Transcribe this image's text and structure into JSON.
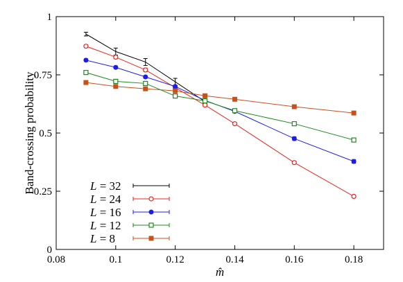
{
  "chart_data": {
    "type": "line",
    "xlabel": "m̂",
    "ylabel": "Band-crossing probability",
    "xlim": [
      0.08,
      0.19
    ],
    "ylim": [
      0,
      1
    ],
    "x_ticks": [
      "0.08",
      "0.1",
      "0.12",
      "0.14",
      "0.16",
      "0.18"
    ],
    "y_ticks": [
      "0",
      "0.25",
      "0.5",
      "0.75",
      "1"
    ],
    "x": [
      0.09,
      0.1,
      0.11,
      0.12,
      0.13,
      0.14,
      0.16,
      0.18
    ],
    "grid": false,
    "legend_position": "bottom-left",
    "series": [
      {
        "name": "L = 32",
        "label_var": "L",
        "label_value": "= 32",
        "color": "#000000",
        "marker": "none",
        "values": [
          0.925,
          0.85,
          0.805,
          0.72,
          0.635,
          null,
          null,
          null
        ],
        "errors": [
          0.008,
          0.015,
          0.015,
          0.015,
          0.008,
          null,
          null,
          null
        ]
      },
      {
        "name": "L = 24",
        "label_var": "L",
        "label_value": "= 24",
        "color": "#e8251c",
        "marker": "open-circle",
        "values": [
          0.873,
          0.826,
          0.771,
          0.695,
          0.62,
          0.54,
          0.373,
          0.228
        ],
        "errors": [
          0.006,
          0.007,
          0.008,
          0.008,
          0.006,
          0.006,
          0.006,
          0.006
        ]
      },
      {
        "name": "L = 16",
        "label_var": "L",
        "label_value": "= 16",
        "color": "#1c1ce8",
        "marker": "filled-circle",
        "values": [
          0.813,
          0.782,
          0.741,
          0.7,
          0.64,
          0.593,
          0.476,
          0.378
        ],
        "errors": [
          0.006,
          0.006,
          0.006,
          0.006,
          0.006,
          0.006,
          0.008,
          0.008
        ]
      },
      {
        "name": "L = 12",
        "label_var": "L",
        "label_value": "= 12",
        "color": "#1a8a1a",
        "marker": "open-square",
        "values": [
          0.76,
          0.722,
          0.713,
          0.659,
          0.638,
          0.596,
          0.54,
          0.47
        ],
        "errors": [
          0.004,
          0.004,
          0.004,
          0.004,
          0.004,
          0.004,
          0.004,
          0.006
        ]
      },
      {
        "name": "L = 8",
        "label_var": "L",
        "label_value": "= 8",
        "color": "#c8501a",
        "marker": "filled-square",
        "values": [
          0.717,
          0.7,
          0.69,
          0.681,
          0.66,
          0.645,
          0.613,
          0.586
        ],
        "errors": [
          0.003,
          0.003,
          0.003,
          0.003,
          0.003,
          0.003,
          0.003,
          0.003
        ]
      }
    ]
  }
}
